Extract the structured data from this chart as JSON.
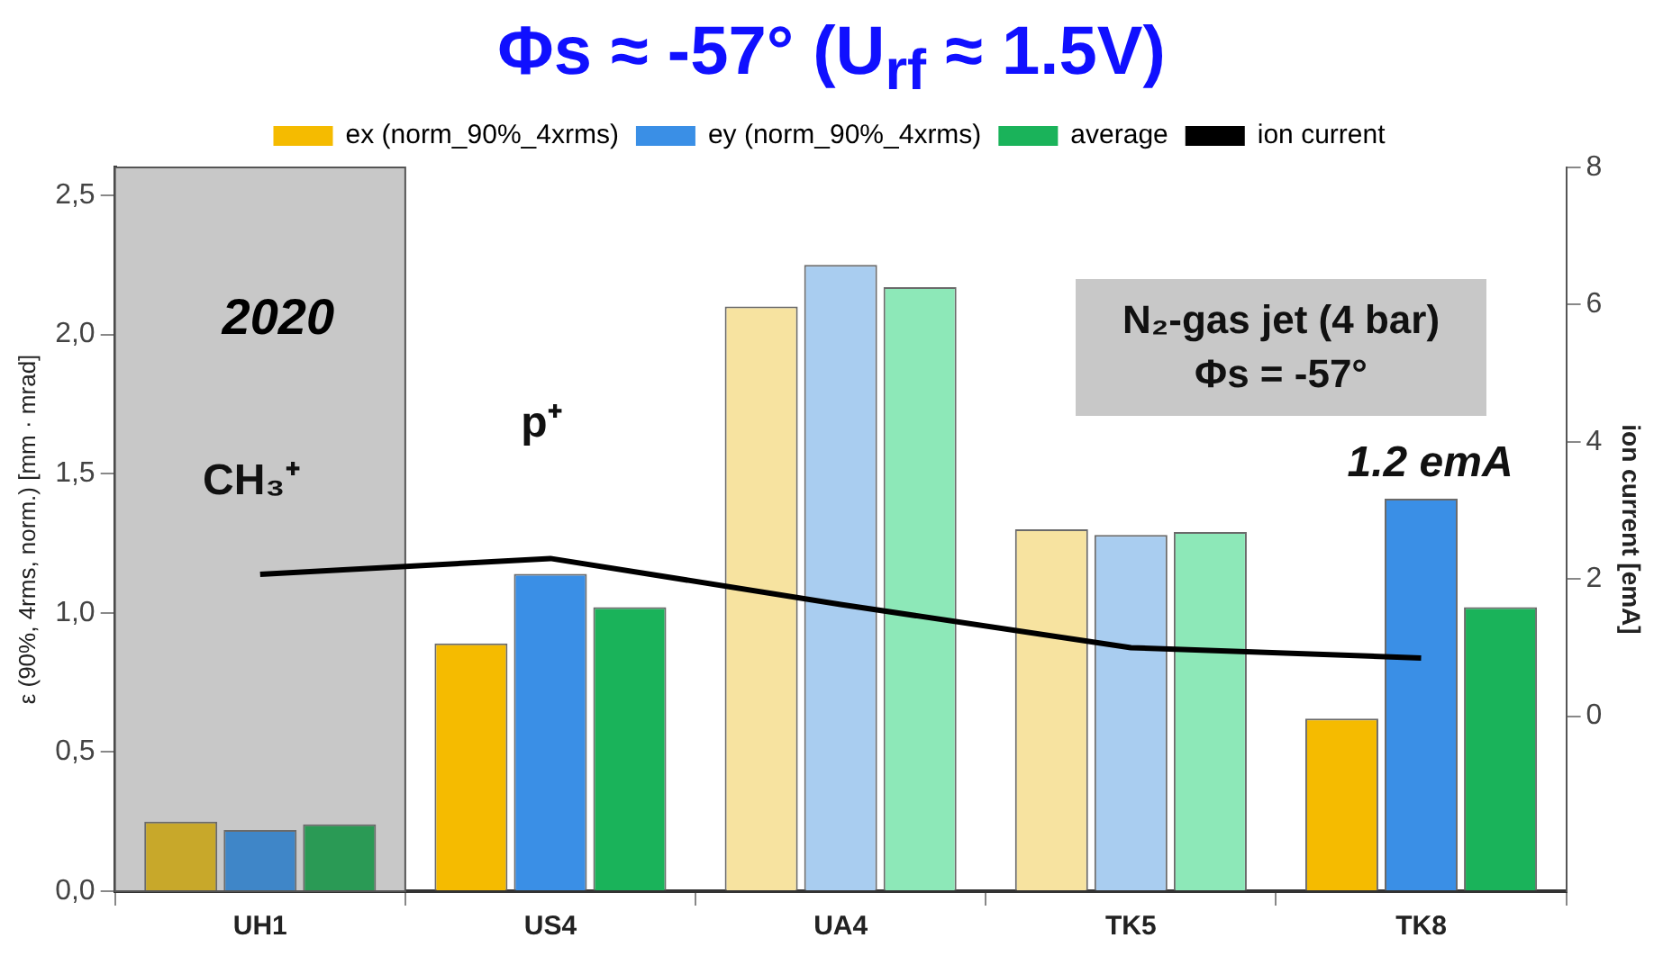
{
  "chart_data": {
    "type": "bar",
    "title": "Φs ≈ -57° (U$_{rf}$ ≈  1.5V)",
    "ylabel": "ε (90%, 4rms, norm.) [mm · mrad]",
    "y2label": "ion current [emA]",
    "categories": [
      "UH1",
      "US4",
      "UA4",
      "TK5",
      "TK8"
    ],
    "series": [
      {
        "name": "ex (norm_90%_4xrms)",
        "color": "#f5bb00",
        "colors": [
          "#c8a82a",
          "#f5bb00",
          "#f7e3a0",
          "#f7e3a0",
          "#f5bb00"
        ],
        "values": [
          0.25,
          0.89,
          2.1,
          1.3,
          0.62
        ]
      },
      {
        "name": "ey (norm_90%_4xrms)",
        "color": "#3a8fe6",
        "colors": [
          "#3f86c8",
          "#3a8fe6",
          "#a9cdf0",
          "#a9cdf0",
          "#3a8fe6"
        ],
        "values": [
          0.22,
          1.14,
          2.25,
          1.28,
          1.41
        ]
      },
      {
        "name": "average",
        "color": "#1ab35a",
        "colors": [
          "#2a9a55",
          "#1ab35a",
          "#8de8b8",
          "#8de8b8",
          "#1ab35a"
        ],
        "values": [
          0.24,
          1.02,
          2.17,
          1.29,
          1.02
        ]
      },
      {
        "name": "ion current",
        "type": "line",
        "axis": "y2",
        "color": "#000000",
        "values": [
          2.07,
          2.3,
          1.63,
          1.0,
          0.85
        ]
      }
    ],
    "ylim": [
      0,
      2.6
    ],
    "yticks": [
      {
        "value": 0,
        "label": "0,0"
      },
      {
        "value": 0.5,
        "label": "0,5"
      },
      {
        "value": 1,
        "label": "1,0"
      },
      {
        "value": 1.5,
        "label": "1,5"
      },
      {
        "value": 2,
        "label": "2,0"
      },
      {
        "value": 2.5,
        "label": "2,5"
      }
    ],
    "y2lim": [
      -2.55,
      8
    ],
    "y2ticks": [
      0,
      2,
      4,
      6,
      8
    ],
    "bands": [
      {
        "axis": "x",
        "from": "UH1",
        "to": "UH1",
        "label": "2020",
        "color": "#c8c8c8"
      }
    ],
    "annotations": [
      "CH₃⁺",
      "p⁺",
      "1.2 emA",
      "N₂-gas jet (4 bar)",
      "Φs = -57°"
    ],
    "legend": "top",
    "grid": false,
    "marker": "none",
    "line_style": "solid"
  }
}
